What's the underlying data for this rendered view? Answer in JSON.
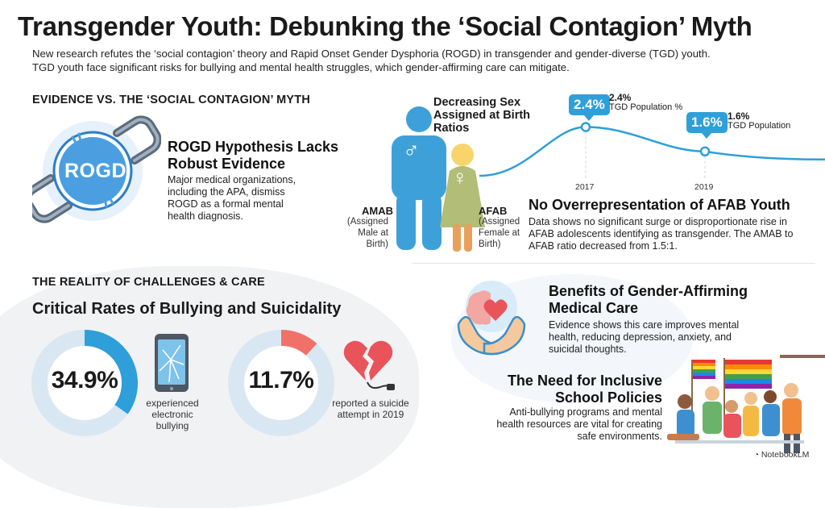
{
  "header": {
    "title": "Transgender Youth: Debunking the ‘Social Contagion’ Myth",
    "intro_line1": "New research refutes the ‘social contagion’ theory and Rapid Onset Gender Dysphoria (ROGD) in transgender and gender-diverse (TGD) youth.",
    "intro_line2": "TGD youth face significant risks for bullying and mental health struggles, which gender-affirming care can mitigate."
  },
  "evidence": {
    "heading": "EVIDENCE VS. THE ‘SOCIAL CONTAGION’ MYTH",
    "rogd_icon_text": "ROGD",
    "rogd_title": "ROGD Hypothesis Lacks Robust Evidence",
    "rogd_body": "Major medical organizations, including the APA, dismiss ROGD as a formal mental health diagnosis."
  },
  "sex_ratio": {
    "title": "Decreasing Sex Assigned at Birth Ratios",
    "amab_label": "AMAB",
    "amab_desc": "(Assigned Male at Birth)",
    "afab_label": "AFAB",
    "afab_desc": "(Assigned Female at Birth)",
    "male_symbol": "♂",
    "female_symbol": "♀"
  },
  "chart_data": {
    "type": "line",
    "x": [
      2017,
      2019
    ],
    "points": [
      {
        "x": 2017,
        "y": 2.4,
        "tag": "2.4%",
        "label_value": "2.4%",
        "label_text": "TGD Population %"
      },
      {
        "x": 2019,
        "y": 1.6,
        "tag": "1.6%",
        "label_value": "1.6%",
        "label_text": "TGD Population"
      }
    ],
    "tick_labels": [
      "2017",
      "2019"
    ],
    "line_color": "#2e9fd9"
  },
  "afab": {
    "title": "No Overrepresentation of AFAB Youth",
    "body": "Data shows no significant surge or disproportionate rise in AFAB adolescents identifying as transgender. The AMAB to AFAB ratio decreased from 1.5:1."
  },
  "reality": {
    "heading": "THE REALITY OF CHALLENGES & CARE",
    "subheading": "Critical Rates of Bullying and Suicidality",
    "bullying": {
      "value": "34.9%",
      "fraction": 0.349,
      "color": "#2e9fd9",
      "label": "experienced electronic bullying"
    },
    "suicide": {
      "value": "11.7%",
      "fraction": 0.117,
      "color": "#f0716a",
      "label": "reported a suicide attempt in 2019"
    }
  },
  "care": {
    "title": "Benefits of Gender-Affirming Medical Care",
    "body": "Evidence shows this care improves mental health, reducing depression, anxiety, and suicidal thoughts."
  },
  "school": {
    "title": "The Need for Inclusive School Policies",
    "body": "Anti-bullying programs and mental health resources are vital for creating safe environments."
  },
  "footer": {
    "brand": "NotebookLM"
  }
}
